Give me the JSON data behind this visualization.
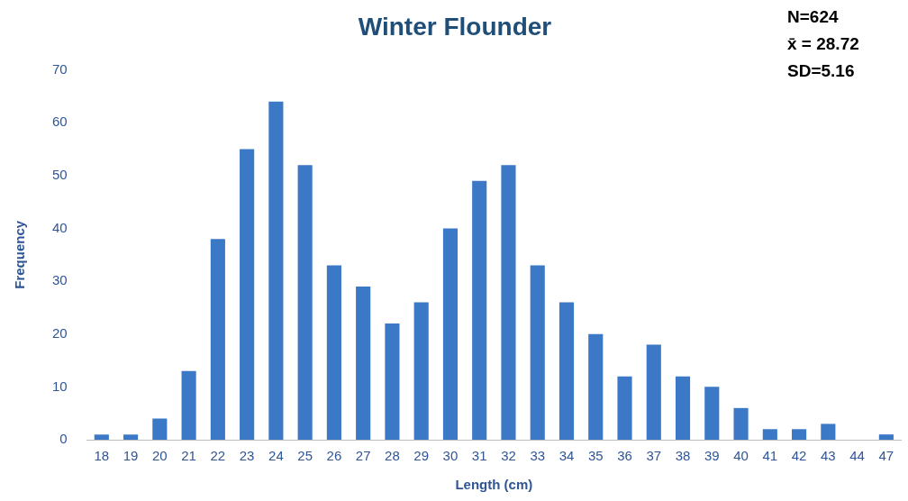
{
  "chart_data": {
    "type": "bar",
    "title": "Winter Flounder",
    "xlabel": "Length (cm)",
    "ylabel": "Frequency",
    "annotations": [
      "N=624",
      "x̄ = 28.72",
      "SD=5.16"
    ],
    "categories": [
      "18",
      "19",
      "20",
      "21",
      "22",
      "23",
      "24",
      "25",
      "26",
      "27",
      "28",
      "29",
      "30",
      "31",
      "32",
      "33",
      "34",
      "35",
      "36",
      "37",
      "38",
      "39",
      "40",
      "41",
      "42",
      "43",
      "44",
      "47"
    ],
    "values": [
      1,
      1,
      4,
      13,
      38,
      55,
      64,
      52,
      33,
      29,
      22,
      26,
      40,
      49,
      52,
      33,
      26,
      20,
      12,
      18,
      12,
      10,
      6,
      2,
      2,
      3,
      0,
      1
    ],
    "color": "#3b78c6",
    "ylim": [
      0,
      70
    ],
    "yticks": [
      0,
      10,
      20,
      30,
      40,
      50,
      60,
      70
    ],
    "grid": false,
    "legend": false
  }
}
